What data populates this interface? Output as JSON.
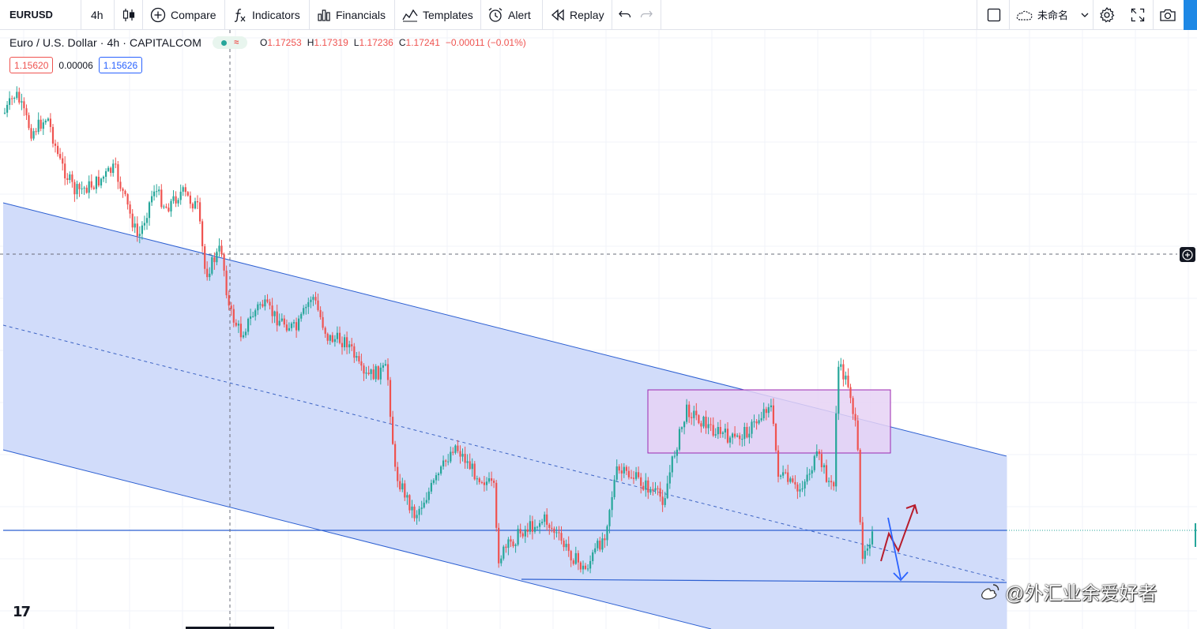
{
  "toolbar": {
    "symbol": "EURUSD",
    "interval": "4h",
    "compare_label": "Compare",
    "indicators_label": "Indicators",
    "financials_label": "Financials",
    "templates_label": "Templates",
    "alert_label": "Alert",
    "replay_label": "Replay",
    "layout_name": "未命名"
  },
  "legend": {
    "title": "Euro / U.S. Dollar · 4h · CAPITALCOM",
    "open_key": "O",
    "open": "1.17253",
    "high_key": "H",
    "high": "1.17319",
    "low_key": "L",
    "low": "1.17236",
    "close_key": "C",
    "close": "1.17241",
    "change": "−0.00011 (−0.01%)"
  },
  "quotes": {
    "sell": "1.15620",
    "spread": "0.00006",
    "buy": "1.15626"
  },
  "watermark": "@外汇业余爱好者",
  "logo": "17",
  "colors": {
    "up": "#26a69a",
    "down": "#ef5350",
    "channel_fill": "#d1dcfa",
    "channel_line": "#2c5fd1",
    "box_fill": "#e6d2f5",
    "box_line": "#9c27b0",
    "arrow_up": "#b71c2c",
    "arrow_down": "#2962ff"
  }
}
